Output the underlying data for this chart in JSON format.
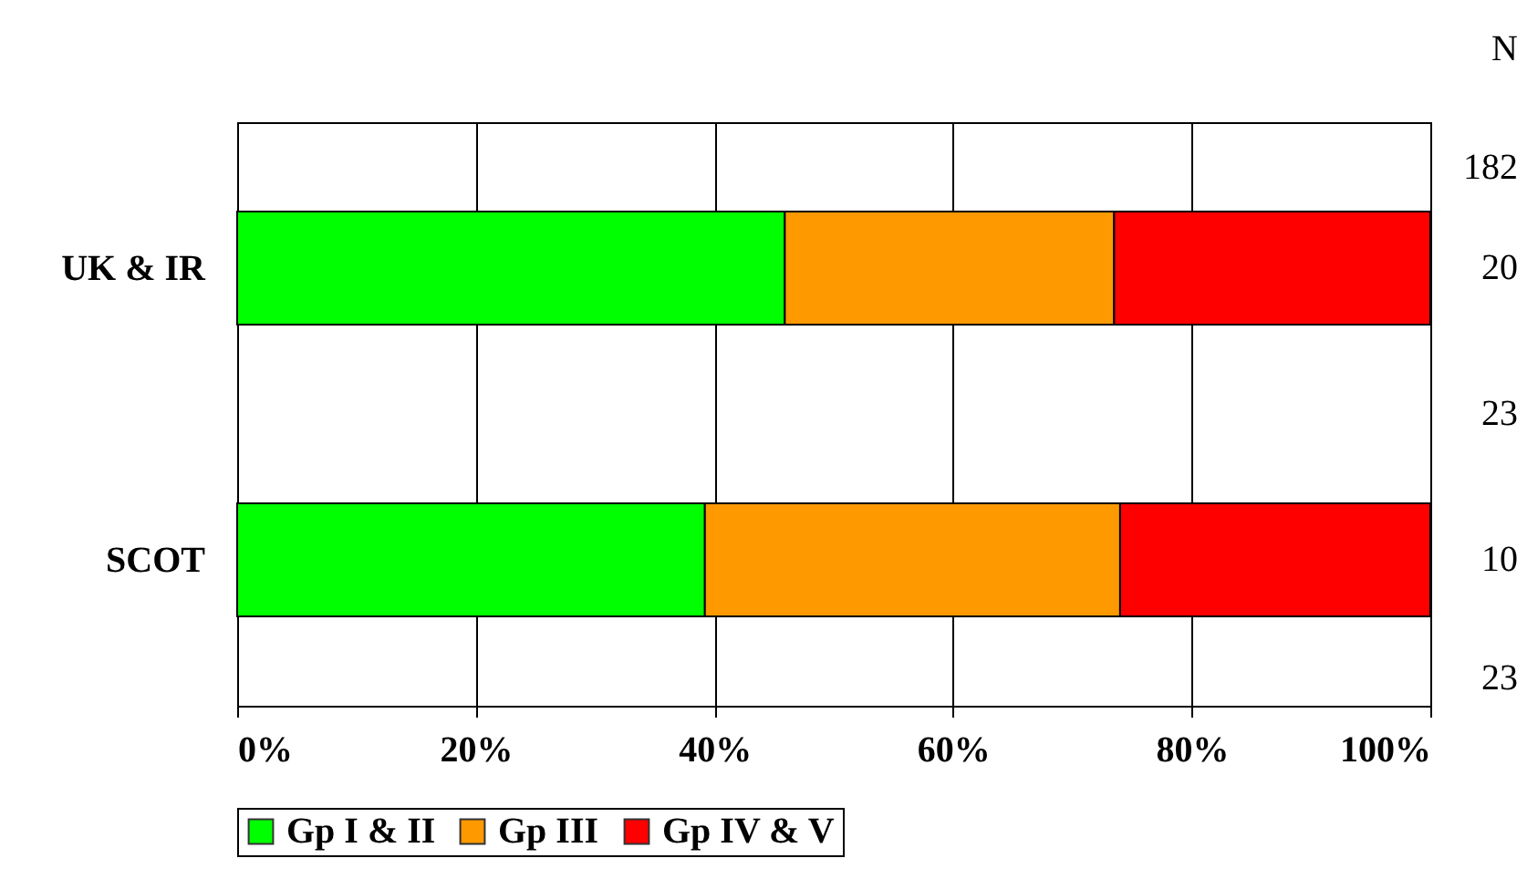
{
  "chart_data": {
    "type": "bar",
    "orientation": "horizontal",
    "stacked": true,
    "categories": [
      "UK & IR",
      "SCOT"
    ],
    "series": [
      {
        "name": "Gp I & II",
        "color": "#00ff00",
        "values": [
          45.9,
          39.2
        ]
      },
      {
        "name": "Gp III",
        "color": "#ff9900",
        "values": [
          27.6,
          34.8
        ]
      },
      {
        "name": "Gp IV & V",
        "color": "#ff0000",
        "values": [
          26.5,
          26.0
        ]
      }
    ],
    "xlim": [
      0,
      100
    ],
    "xticks": [
      {
        "value": 0,
        "label": "0%"
      },
      {
        "value": 20,
        "label": "20%"
      },
      {
        "value": 40,
        "label": "40%"
      },
      {
        "value": 60,
        "label": "60%"
      },
      {
        "value": 80,
        "label": "80%"
      },
      {
        "value": 100,
        "label": "100%"
      }
    ],
    "grid": "x",
    "legend": "bottom",
    "annotations": [
      "N",
      "182",
      "20",
      "23",
      "10",
      "23"
    ]
  }
}
